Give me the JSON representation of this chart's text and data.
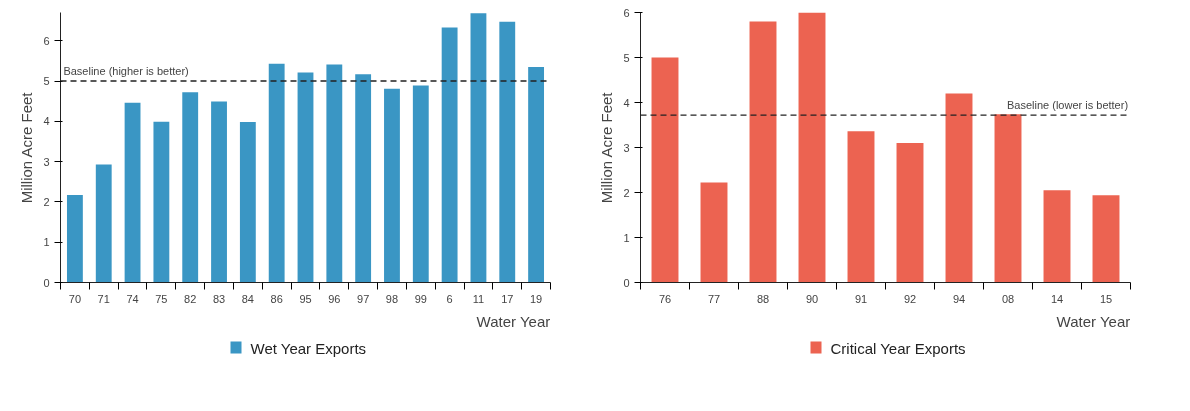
{
  "chart_data": [
    {
      "type": "bar",
      "categories": [
        "70",
        "71",
        "74",
        "75",
        "82",
        "83",
        "84",
        "86",
        "95",
        "96",
        "97",
        "98",
        "99",
        "6",
        "11",
        "17",
        "19"
      ],
      "series": [
        {
          "name": "Wet Year Exports",
          "color": "#3a96c4",
          "values": [
            2.17,
            2.93,
            4.46,
            3.99,
            4.72,
            4.49,
            3.98,
            5.43,
            5.21,
            5.41,
            5.17,
            4.81,
            4.89,
            6.33,
            6.68,
            6.47,
            5.35
          ]
        }
      ],
      "ylim": [
        0,
        6.7
      ],
      "yticks": [
        0,
        1,
        2,
        3,
        4,
        5,
        6
      ],
      "xlabel": "Water Year",
      "ylabel": "Million Acre Feet",
      "ref_lines": [
        {
          "axis": "y",
          "value": 5,
          "label": "Baseline (higher is better)",
          "line_style": "dashed"
        }
      ],
      "legend": "bottom",
      "grid": false
    },
    {
      "type": "bar",
      "categories": [
        "76",
        "77",
        "88",
        "90",
        "91",
        "92",
        "94",
        "08",
        "14",
        "15"
      ],
      "series": [
        {
          "name": "Critical Year Exports",
          "color": "#ec6351",
          "values": [
            5.0,
            2.22,
            5.8,
            6.0,
            3.36,
            3.1,
            4.2,
            3.74,
            2.05,
            1.94
          ]
        }
      ],
      "ylim": [
        0,
        6
      ],
      "yticks": [
        0,
        1,
        2,
        3,
        4,
        5,
        6
      ],
      "xlabel": "Water Year",
      "ylabel": "Million Acre Feet",
      "ref_lines": [
        {
          "axis": "y",
          "value": 3.72,
          "label": "Baseline (lower is better)",
          "line_style": "dashed"
        }
      ],
      "legend": "bottom",
      "grid": false
    }
  ]
}
